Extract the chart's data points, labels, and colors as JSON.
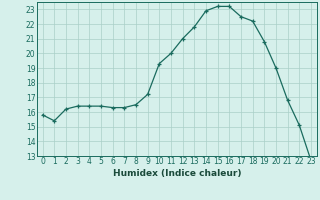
{
  "x": [
    0,
    1,
    2,
    3,
    4,
    5,
    6,
    7,
    8,
    9,
    10,
    11,
    12,
    13,
    14,
    15,
    16,
    17,
    18,
    19,
    20,
    21,
    22,
    23
  ],
  "y": [
    15.8,
    15.4,
    16.2,
    16.4,
    16.4,
    16.4,
    16.3,
    16.3,
    16.5,
    17.2,
    19.3,
    20.0,
    21.0,
    21.8,
    22.9,
    23.2,
    23.2,
    22.5,
    22.2,
    20.8,
    19.0,
    16.8,
    15.1,
    12.7
  ],
  "xlabel": "Humidex (Indice chaleur)",
  "line_color": "#1a6b5e",
  "marker_color": "#1a6b5e",
  "bg_color": "#d6f0eb",
  "grid_color": "#aacfc8",
  "tick_color": "#1a6b5e",
  "label_color": "#1a4a3a",
  "xlim": [
    -0.5,
    23.5
  ],
  "ylim": [
    13,
    23.5
  ],
  "yticks": [
    13,
    14,
    15,
    16,
    17,
    18,
    19,
    20,
    21,
    22,
    23
  ],
  "xticks": [
    0,
    1,
    2,
    3,
    4,
    5,
    6,
    7,
    8,
    9,
    10,
    11,
    12,
    13,
    14,
    15,
    16,
    17,
    18,
    19,
    20,
    21,
    22,
    23
  ],
  "tick_fontsize": 5.5,
  "xlabel_fontsize": 6.5
}
